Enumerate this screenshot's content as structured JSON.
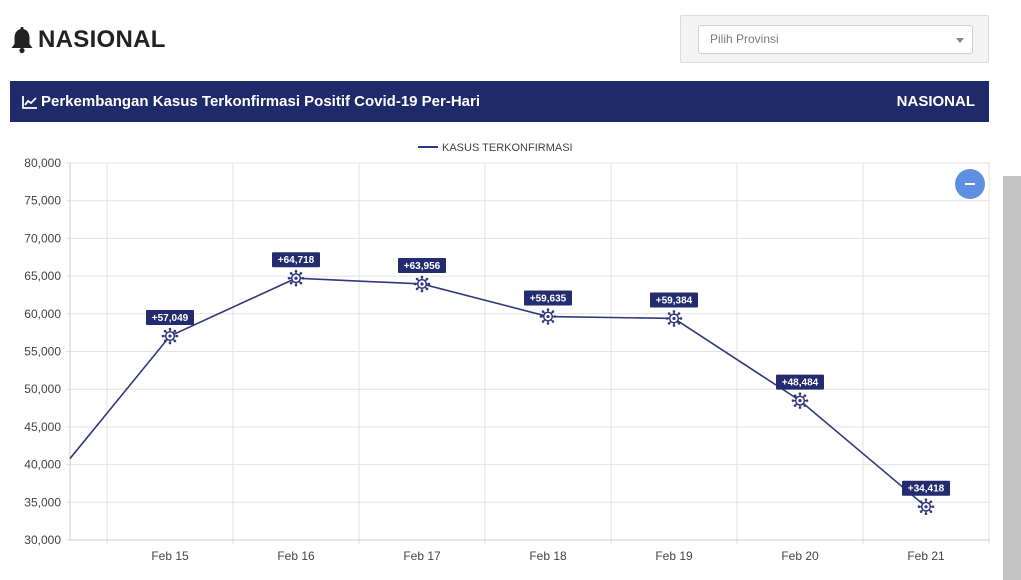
{
  "header": {
    "title": "NASIONAL",
    "icon": "bell-icon"
  },
  "filter": {
    "province_placeholder": "Pilih Provinsi"
  },
  "banner": {
    "title": "Perkembangan Kasus Terkonfirmasi Positif Covid-19 Per-Hari",
    "scope": "NASIONAL",
    "icon": "line-chart-icon",
    "color": "#1f2a6b"
  },
  "colors": {
    "line": "#2f3a7d",
    "label_bg": "#222c6e",
    "grid": "#e3e3e3",
    "zoom_button": "#5e8fe0"
  },
  "chart_data": {
    "type": "line",
    "legend": {
      "position": "top",
      "label": "KASUS TERKONFIRMASI"
    },
    "grid": true,
    "ylim": [
      30000,
      80000
    ],
    "yticks": [
      "30,000",
      "35,000",
      "40,000",
      "45,000",
      "50,000",
      "55,000",
      "60,000",
      "65,000",
      "70,000",
      "75,000",
      "80,000"
    ],
    "categories": [
      "Feb 15",
      "Feb 16",
      "Feb 17",
      "Feb 18",
      "Feb 19",
      "Feb 20",
      "Feb 21"
    ],
    "series": [
      {
        "name": "KASUS TERKONFIRMASI",
        "values": [
          57049,
          64718,
          63956,
          59635,
          59384,
          48484,
          34418
        ],
        "labels": [
          "+57,049",
          "+64,718",
          "+63,956",
          "+59,635",
          "+59,384",
          "+48,484",
          "+34,418"
        ]
      }
    ],
    "previous_value": 40800
  }
}
